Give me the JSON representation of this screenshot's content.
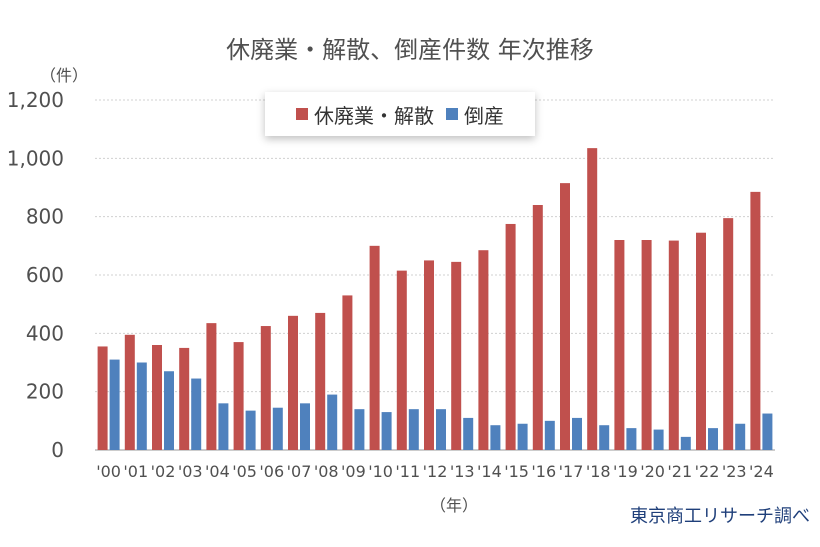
{
  "chart_data": {
    "type": "bar",
    "title": "休廃業・解散、倒産件数 年次推移",
    "y_unit_label": "（件）",
    "x_unit_label": "（年）",
    "source": "東京商工リサーチ調べ",
    "categories": [
      "'00",
      "'01",
      "'02",
      "'03",
      "'04",
      "'05",
      "'06",
      "'07",
      "'08",
      "'09",
      "'10",
      "'11",
      "'12",
      "'13",
      "'14",
      "'15",
      "'16",
      "'17",
      "'18",
      "'19",
      "'20",
      "'21",
      "'22",
      "'23",
      "'24"
    ],
    "series": [
      {
        "name": "休廃業・解散",
        "color": "#c0504d",
        "values": [
          355,
          395,
          360,
          350,
          435,
          370,
          425,
          460,
          470,
          530,
          700,
          615,
          650,
          645,
          685,
          775,
          840,
          915,
          1035,
          720,
          720,
          718,
          745,
          795,
          885
        ]
      },
      {
        "name": "倒産",
        "color": "#4f81bd",
        "values": [
          310,
          300,
          270,
          245,
          160,
          135,
          145,
          160,
          190,
          140,
          130,
          140,
          140,
          110,
          85,
          90,
          100,
          110,
          85,
          75,
          70,
          45,
          75,
          90,
          125
        ]
      }
    ],
    "ylim": [
      0,
      1200
    ],
    "yticks": [
      0,
      200,
      400,
      600,
      800,
      1000,
      1200
    ],
    "ytick_labels": [
      "0",
      "200",
      "400",
      "600",
      "800",
      "1,000",
      "1,200"
    ],
    "grid": true,
    "legend": "top-center"
  }
}
